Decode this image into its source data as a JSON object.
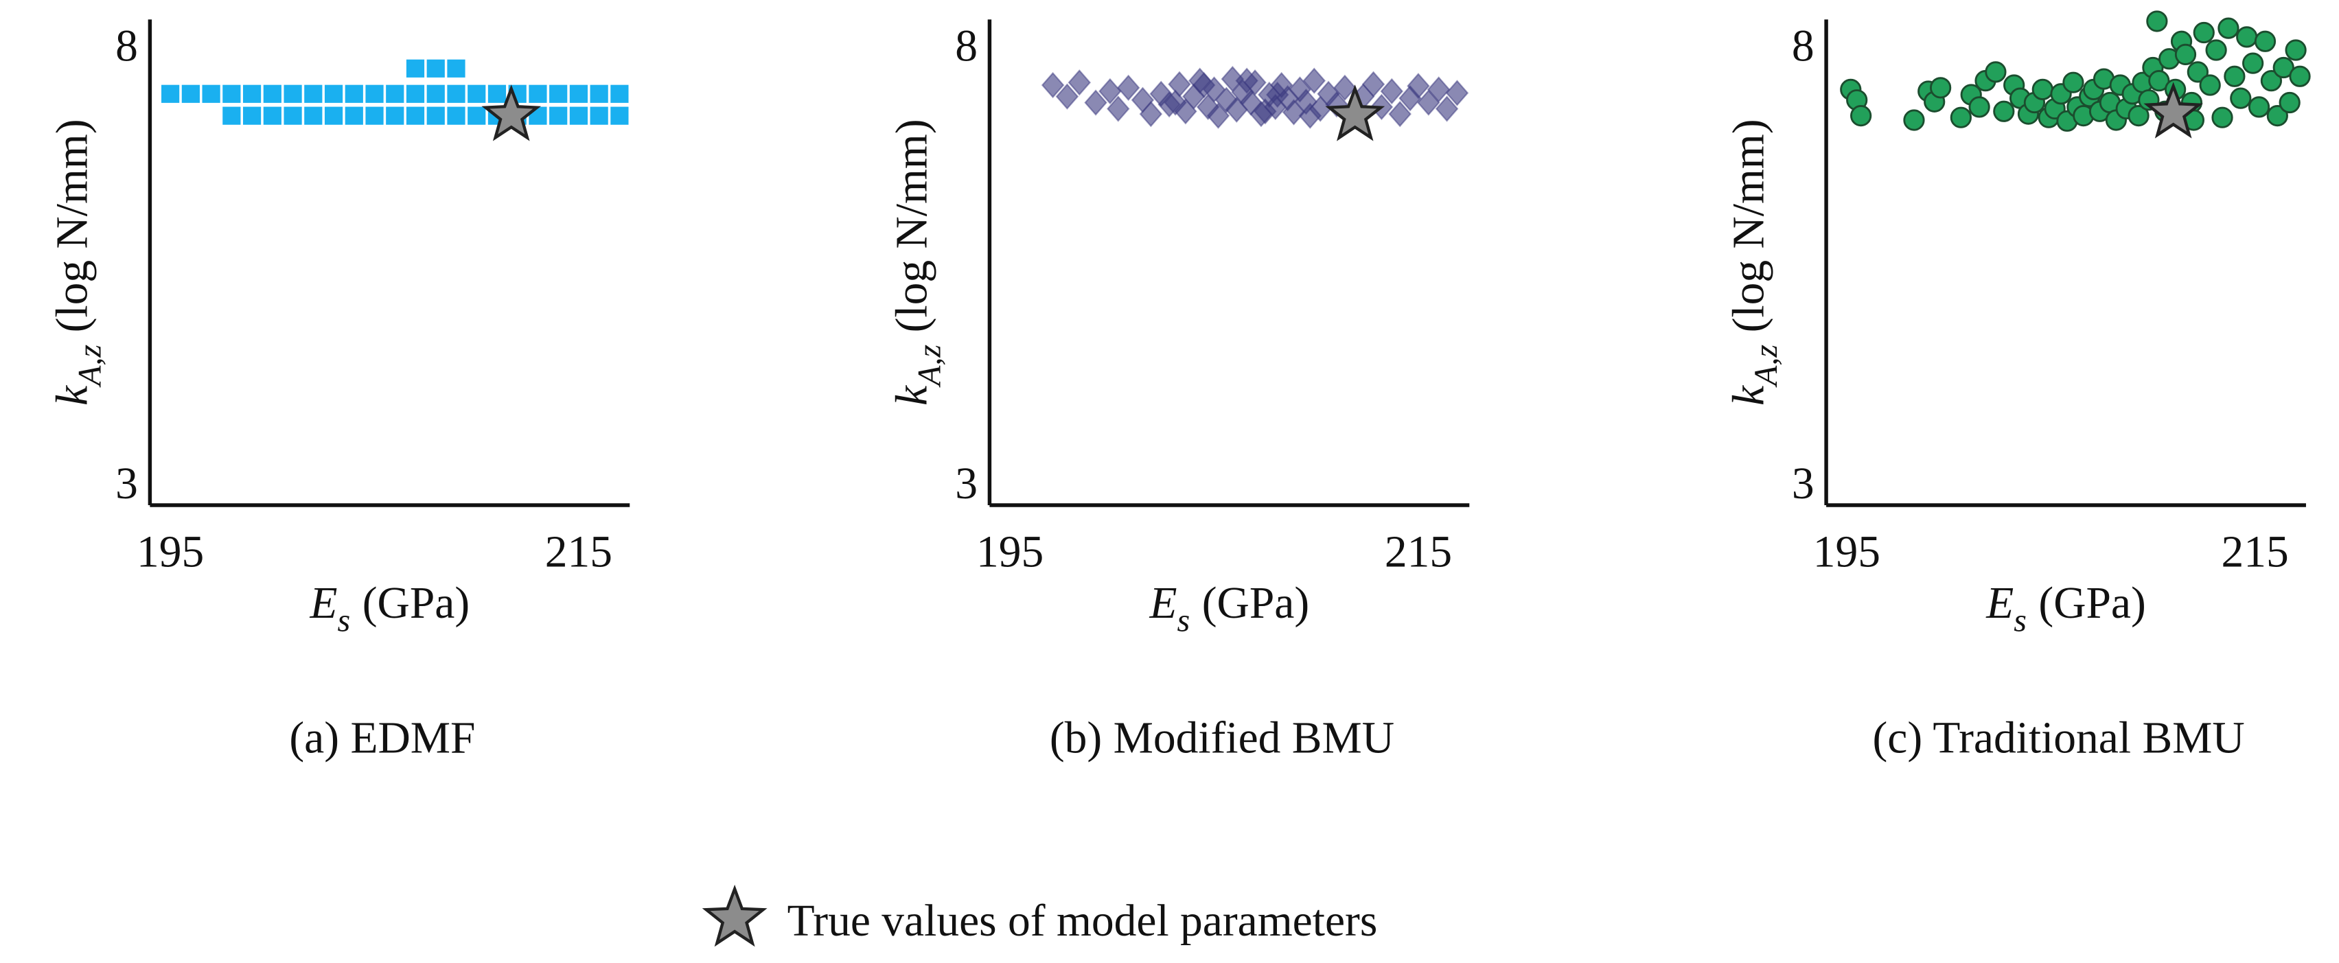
{
  "chart_data": [
    {
      "type": "scatter",
      "caption": "(a) EDMF",
      "color": "#1ab0f0",
      "marker": "square",
      "xlabel": {
        "symbol": "E",
        "subscript": "s",
        "unit": "(GPa)"
      },
      "ylabel": {
        "symbol": "k",
        "subscript": "A,z",
        "unit": "(log N/mm)"
      },
      "xlim": [
        194,
        217.5
      ],
      "ylim": [
        2.75,
        8.3
      ],
      "xticks": [
        195,
        215
      ],
      "yticks": [
        3,
        8
      ],
      "x": [
        195,
        196,
        197,
        198,
        199,
        200,
        201,
        202,
        203,
        204,
        205,
        206,
        207,
        208,
        209,
        210,
        211,
        212,
        213,
        214,
        215,
        216,
        217,
        198,
        199,
        200,
        201,
        202,
        203,
        204,
        205,
        206,
        207,
        208,
        209,
        210,
        211,
        212,
        213,
        214,
        215,
        216,
        217,
        207,
        208,
        209
      ],
      "y": [
        7.45,
        7.45,
        7.45,
        7.45,
        7.45,
        7.45,
        7.45,
        7.45,
        7.45,
        7.45,
        7.45,
        7.45,
        7.45,
        7.45,
        7.45,
        7.45,
        7.45,
        7.45,
        7.45,
        7.45,
        7.45,
        7.45,
        7.45,
        7.2,
        7.2,
        7.2,
        7.2,
        7.2,
        7.2,
        7.2,
        7.2,
        7.2,
        7.2,
        7.2,
        7.2,
        7.2,
        7.2,
        7.2,
        7.2,
        7.2,
        7.2,
        7.2,
        7.2,
        7.74,
        7.74,
        7.74
      ],
      "true_value": {
        "x": 211.7,
        "y": 7.2
      }
    },
    {
      "type": "scatter",
      "caption": "(b) Modified BMU",
      "color": "#3c3a80",
      "marker": "diamond",
      "xlabel": {
        "symbol": "E",
        "subscript": "s",
        "unit": "(GPa)"
      },
      "ylabel": {
        "symbol": "k",
        "subscript": "A,z",
        "unit": "(log N/mm)"
      },
      "xlim": [
        194,
        217.5
      ],
      "ylim": [
        2.75,
        8.3
      ],
      "xticks": [
        195,
        215
      ],
      "yticks": [
        3,
        8
      ],
      "x": [
        197.1,
        197.8,
        198.4,
        199.2,
        199.9,
        200.3,
        200.8,
        201.5,
        201.9,
        202.4,
        202.8,
        203.3,
        203.6,
        204.0,
        204.3,
        204.7,
        205.0,
        205.2,
        205.6,
        205.9,
        206.1,
        206.4,
        206.8,
        207.0,
        207.3,
        207.7,
        208.0,
        208.3,
        208.6,
        208.9,
        209.2,
        209.5,
        209.9,
        210.2,
        210.6,
        211.0,
        211.4,
        211.9,
        212.3,
        212.8,
        213.2,
        213.7,
        214.1,
        214.6,
        215.0,
        215.5,
        216.0,
        216.4,
        216.9,
        204.5,
        206.6,
        208.1,
        203.1,
        207.5,
        209.7
      ],
      "y": [
        7.55,
        7.42,
        7.58,
        7.35,
        7.48,
        7.28,
        7.52,
        7.38,
        7.22,
        7.45,
        7.33,
        7.56,
        7.25,
        7.42,
        7.6,
        7.3,
        7.5,
        7.2,
        7.38,
        7.62,
        7.27,
        7.47,
        7.35,
        7.58,
        7.22,
        7.44,
        7.3,
        7.55,
        7.4,
        7.24,
        7.5,
        7.36,
        7.6,
        7.28,
        7.45,
        7.33,
        7.52,
        7.25,
        7.42,
        7.56,
        7.3,
        7.48,
        7.22,
        7.4,
        7.54,
        7.35,
        7.5,
        7.28,
        7.46,
        7.55,
        7.6,
        7.44,
        7.35,
        7.25,
        7.2
      ],
      "true_value": {
        "x": 211.9,
        "y": 7.2
      }
    },
    {
      "type": "scatter",
      "caption": "(c) Traditional BMU",
      "color": "#22a05a",
      "marker": "circle",
      "xlabel": {
        "symbol": "E",
        "subscript": "s",
        "unit": "(GPa)"
      },
      "ylabel": {
        "symbol": "k",
        "subscript": "A,z",
        "unit": "(log N/mm)"
      },
      "xlim": [
        194,
        217.5
      ],
      "ylim": [
        2.75,
        8.3
      ],
      "xticks": [
        195,
        215
      ],
      "yticks": [
        3,
        8
      ],
      "x": [
        195.2,
        195.5,
        195.7,
        198.3,
        199.0,
        199.3,
        199.6,
        200.6,
        201.1,
        201.5,
        201.8,
        202.3,
        202.7,
        203.2,
        203.5,
        203.9,
        204.2,
        204.6,
        204.9,
        205.2,
        205.5,
        205.8,
        206.1,
        206.3,
        206.6,
        206.9,
        207.1,
        207.4,
        207.6,
        207.9,
        208.2,
        208.4,
        208.7,
        209.0,
        209.3,
        209.5,
        209.8,
        210.0,
        210.3,
        210.6,
        210.8,
        211.1,
        211.4,
        211.6,
        211.9,
        212.2,
        212.5,
        212.8,
        213.1,
        213.4,
        213.7,
        214.0,
        214.3,
        214.6,
        214.9,
        215.2,
        215.5,
        215.8,
        216.1,
        216.4,
        216.7,
        217.0,
        217.2,
        210.2,
        212.0
      ],
      "y": [
        7.5,
        7.38,
        7.2,
        7.15,
        7.48,
        7.36,
        7.52,
        7.18,
        7.44,
        7.3,
        7.6,
        7.7,
        7.25,
        7.55,
        7.4,
        7.22,
        7.35,
        7.5,
        7.18,
        7.28,
        7.45,
        7.14,
        7.58,
        7.3,
        7.2,
        7.42,
        7.5,
        7.25,
        7.62,
        7.35,
        7.15,
        7.55,
        7.28,
        7.45,
        7.2,
        7.58,
        7.38,
        7.75,
        7.6,
        7.25,
        7.85,
        7.5,
        8.05,
        7.9,
        7.35,
        7.7,
        8.15,
        7.55,
        7.95,
        7.18,
        8.2,
        7.65,
        7.4,
        8.1,
        7.8,
        7.3,
        8.05,
        7.6,
        7.2,
        7.75,
        7.35,
        7.95,
        7.65,
        8.28,
        7.15
      ],
      "true_value": {
        "x": 211.0,
        "y": 7.23
      }
    }
  ],
  "legend": {
    "label": "True values of model parameters",
    "color": "#8c8c8c"
  }
}
